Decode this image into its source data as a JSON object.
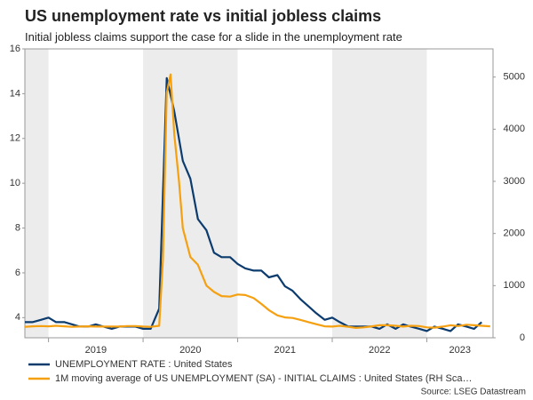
{
  "chart_data": {
    "type": "line",
    "title": "US unemployment rate vs initial jobless claims",
    "subtitle": "Initial jobless claims support the case for a slide in the unemployment rate",
    "source": "Source: LSEG Datastream",
    "xlim": [
      2018.75,
      2023.7
    ],
    "xticks": [
      2019,
      2020,
      2021,
      2022,
      2023
    ],
    "ylim": [
      3.1,
      16
    ],
    "yticks": [
      4,
      6,
      8,
      10,
      12,
      14,
      16
    ],
    "y2lim": [
      0,
      5540
    ],
    "y2ticks": [
      0,
      1000,
      2000,
      3000,
      4000,
      5000
    ],
    "series": [
      {
        "name": "UNEMPLOYMENT RATE : United States",
        "color": "#0c3b6e",
        "axis": "y",
        "x": [
          2018.75,
          2018.83,
          2018.92,
          2019.0,
          2019.08,
          2019.17,
          2019.25,
          2019.33,
          2019.42,
          2019.5,
          2019.58,
          2019.67,
          2019.75,
          2019.83,
          2019.92,
          2020.0,
          2020.08,
          2020.17,
          2020.25,
          2020.33,
          2020.42,
          2020.5,
          2020.58,
          2020.67,
          2020.75,
          2020.83,
          2020.92,
          2021.0,
          2021.08,
          2021.17,
          2021.25,
          2021.33,
          2021.42,
          2021.5,
          2021.58,
          2021.67,
          2021.75,
          2021.83,
          2021.92,
          2022.0,
          2022.08,
          2022.17,
          2022.25,
          2022.33,
          2022.42,
          2022.5,
          2022.58,
          2022.67,
          2022.75,
          2022.83,
          2022.92,
          2023.0,
          2023.08,
          2023.17,
          2023.25,
          2023.33,
          2023.42,
          2023.5,
          2023.58
        ],
        "values": [
          3.8,
          3.8,
          3.9,
          4.0,
          3.8,
          3.8,
          3.7,
          3.6,
          3.6,
          3.7,
          3.6,
          3.5,
          3.6,
          3.6,
          3.6,
          3.5,
          3.5,
          4.4,
          14.7,
          13.2,
          11.0,
          10.2,
          8.4,
          7.9,
          6.9,
          6.7,
          6.7,
          6.4,
          6.2,
          6.1,
          6.1,
          5.8,
          5.9,
          5.4,
          5.2,
          4.8,
          4.5,
          4.2,
          3.9,
          4.0,
          3.8,
          3.6,
          3.6,
          3.6,
          3.6,
          3.5,
          3.7,
          3.5,
          3.7,
          3.6,
          3.5,
          3.4,
          3.6,
          3.5,
          3.4,
          3.7,
          3.6,
          3.5,
          3.8
        ]
      },
      {
        "name": "1M moving average of US UNEMPLOYMENT (SA) - INITIAL CLAIMS : United States (RH Sca…",
        "color": "#f5a011",
        "axis": "y2",
        "x": [
          2018.75,
          2018.83,
          2018.92,
          2019.0,
          2019.08,
          2019.17,
          2019.25,
          2019.33,
          2019.42,
          2019.5,
          2019.58,
          2019.67,
          2019.75,
          2019.83,
          2019.92,
          2020.0,
          2020.08,
          2020.17,
          2020.21,
          2020.25,
          2020.29,
          2020.33,
          2020.38,
          2020.42,
          2020.5,
          2020.58,
          2020.67,
          2020.75,
          2020.83,
          2020.92,
          2021.0,
          2021.08,
          2021.17,
          2021.25,
          2021.33,
          2021.42,
          2021.5,
          2021.58,
          2021.67,
          2021.75,
          2021.83,
          2021.92,
          2022.0,
          2022.08,
          2022.17,
          2022.25,
          2022.33,
          2022.42,
          2022.5,
          2022.58,
          2022.67,
          2022.75,
          2022.83,
          2022.92,
          2023.0,
          2023.08,
          2023.17,
          2023.25,
          2023.33,
          2023.42,
          2023.5,
          2023.58,
          2023.67
        ],
        "values": [
          210,
          220,
          225,
          220,
          230,
          220,
          210,
          215,
          220,
          215,
          215,
          215,
          215,
          225,
          225,
          215,
          210,
          230,
          1500,
          4700,
          5050,
          3900,
          3000,
          2100,
          1550,
          1400,
          1000,
          880,
          800,
          790,
          830,
          820,
          760,
          650,
          530,
          430,
          390,
          380,
          340,
          300,
          260,
          220,
          215,
          230,
          210,
          190,
          200,
          220,
          240,
          240,
          230,
          215,
          230,
          225,
          200,
          195,
          215,
          240,
          225,
          250,
          240,
          230,
          220
        ]
      }
    ]
  }
}
